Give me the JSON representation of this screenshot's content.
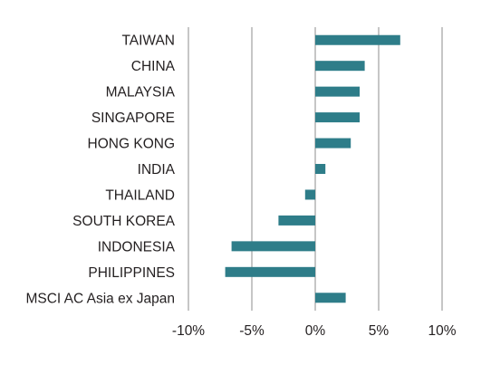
{
  "chart_data": {
    "type": "bar",
    "orientation": "horizontal",
    "categories": [
      "TAIWAN",
      "CHINA",
      "MALAYSIA",
      "SINGAPORE",
      "HONG KONG",
      "INDIA",
      "THAILAND",
      "SOUTH KOREA",
      "INDONESIA",
      "PHILIPPINES",
      "MSCI AC Asia ex Japan"
    ],
    "values": [
      6.7,
      3.9,
      3.5,
      3.5,
      2.8,
      0.8,
      -0.8,
      -2.9,
      -6.6,
      -7.1,
      2.4
    ],
    "unit": "%",
    "xlim": [
      -10,
      10
    ],
    "xticks": [
      -10,
      -5,
      0,
      5,
      10
    ],
    "xtick_labels": [
      "-10%",
      "-5%",
      "0%",
      "5%",
      "10%"
    ],
    "grid": "vertical",
    "bar_color": "#2e7d89",
    "grid_color": "#8c8c8c",
    "text_color": "#231f20"
  }
}
